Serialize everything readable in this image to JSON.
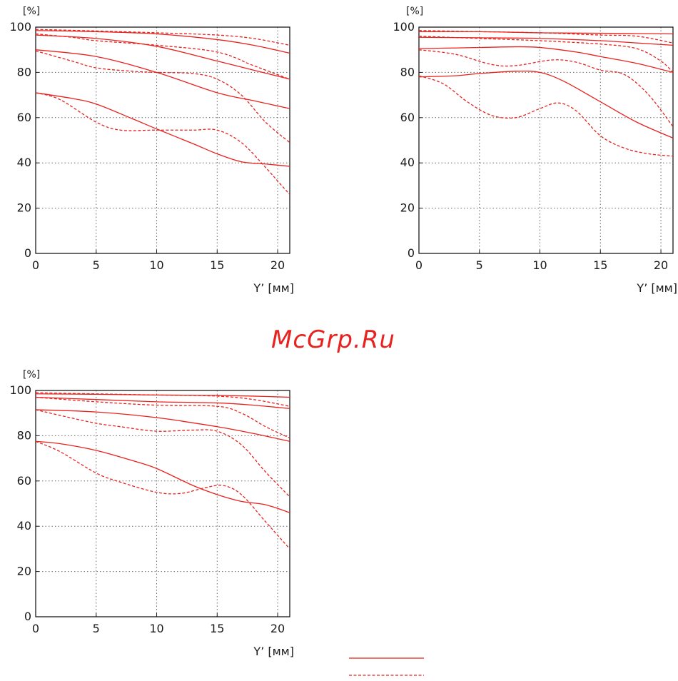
{
  "watermark": "McGrp.Ru",
  "colors": {
    "curve": "#e8221e",
    "grid": "#666666",
    "axis": "#1a1a1a"
  },
  "chart_data": [
    {
      "type": "line",
      "title": "",
      "ylabel": "[%]",
      "xlabel": "Y’ [мм]",
      "xlim": [
        0,
        21
      ],
      "ylim": [
        0,
        100
      ],
      "xticks": [
        0,
        5,
        10,
        15,
        20
      ],
      "yticks": [
        0,
        20,
        40,
        60,
        80,
        100
      ],
      "grid": true,
      "series": [
        {
          "style": "solid",
          "x": [
            0,
            5,
            10,
            15,
            18,
            21
          ],
          "y": [
            98.5,
            98,
            97,
            94.5,
            92,
            88.5
          ]
        },
        {
          "style": "dashed",
          "x": [
            0,
            5,
            10,
            15,
            18,
            21
          ],
          "y": [
            99,
            98.3,
            97.5,
            96.5,
            95,
            92
          ]
        },
        {
          "style": "solid",
          "x": [
            0,
            5,
            10,
            15,
            18,
            21
          ],
          "y": [
            96.5,
            95,
            91.5,
            85,
            81,
            77
          ]
        },
        {
          "style": "dashed",
          "x": [
            0,
            3,
            5,
            10,
            15,
            18,
            21
          ],
          "y": [
            97,
            95.5,
            94,
            92,
            89,
            83,
            77
          ]
        },
        {
          "style": "solid",
          "x": [
            0,
            5,
            10,
            15,
            18,
            21
          ],
          "y": [
            90,
            87,
            80,
            71,
            67.5,
            64
          ]
        },
        {
          "style": "dashed",
          "x": [
            0,
            3,
            5,
            8,
            10,
            13,
            15,
            17,
            19,
            21
          ],
          "y": [
            89.5,
            85,
            82,
            80.5,
            80,
            79.5,
            77,
            70,
            58,
            49
          ]
        },
        {
          "style": "solid",
          "x": [
            0,
            3,
            5,
            8,
            10,
            13,
            15,
            17,
            19,
            21
          ],
          "y": [
            71,
            68.5,
            66,
            59.5,
            55,
            48.5,
            44,
            40.5,
            39.5,
            38.5
          ]
        },
        {
          "style": "dashed",
          "x": [
            0,
            2,
            5,
            7,
            10,
            13,
            15,
            17,
            19,
            20,
            21
          ],
          "y": [
            71,
            68,
            58,
            54.5,
            54.5,
            54.5,
            54.5,
            49,
            38,
            32,
            26
          ]
        }
      ]
    },
    {
      "type": "line",
      "title": "",
      "ylabel": "[%]",
      "xlabel": "Y’ [мм]",
      "xlim": [
        0,
        21
      ],
      "ylim": [
        0,
        100
      ],
      "xticks": [
        0,
        5,
        10,
        15,
        20
      ],
      "yticks": [
        0,
        20,
        40,
        60,
        80,
        100
      ],
      "grid": true,
      "series": [
        {
          "style": "solid",
          "x": [
            0,
            5,
            10,
            15,
            21
          ],
          "y": [
            98,
            98,
            97.5,
            97.3,
            97
          ]
        },
        {
          "style": "dashed",
          "x": [
            0,
            5,
            10,
            15,
            18,
            21
          ],
          "y": [
            98.5,
            98,
            97.5,
            96.5,
            96,
            93
          ]
        },
        {
          "style": "solid",
          "x": [
            0,
            5,
            10,
            15,
            18,
            21
          ],
          "y": [
            95.5,
            95.3,
            95,
            94,
            93,
            92
          ]
        },
        {
          "style": "dashed",
          "x": [
            0,
            5,
            10,
            15,
            18,
            20,
            21
          ],
          "y": [
            96,
            95,
            94,
            92.5,
            90.5,
            85,
            80
          ]
        },
        {
          "style": "solid",
          "x": [
            0,
            5,
            8,
            10,
            13,
            15,
            18,
            21
          ],
          "y": [
            90.5,
            91,
            91.3,
            91,
            89,
            87,
            84,
            80
          ]
        },
        {
          "style": "dashed",
          "x": [
            0,
            3,
            6,
            8,
            11,
            13,
            15,
            17,
            19,
            21
          ],
          "y": [
            90,
            88,
            83.5,
            83,
            85.5,
            84.5,
            81,
            79,
            70,
            56
          ]
        },
        {
          "style": "solid",
          "x": [
            0,
            3,
            5,
            8,
            10,
            12,
            15,
            18,
            21
          ],
          "y": [
            78,
            78.5,
            79.5,
            80.5,
            80,
            76,
            67,
            58,
            51
          ]
        },
        {
          "style": "dashed",
          "x": [
            0,
            2,
            4,
            6,
            8,
            10,
            11.5,
            13,
            15,
            17,
            19,
            21
          ],
          "y": [
            78.5,
            75,
            67,
            61,
            60,
            64,
            66.5,
            63,
            52,
            46.5,
            44,
            43
          ]
        }
      ]
    },
    {
      "type": "line",
      "title": "",
      "ylabel": "[%]",
      "xlabel": "Y’ [мм]",
      "xlim": [
        0,
        21
      ],
      "ylim": [
        0,
        100
      ],
      "xticks": [
        0,
        5,
        10,
        15,
        20
      ],
      "yticks": [
        0,
        20,
        40,
        60,
        80,
        100
      ],
      "grid": true,
      "series": [
        {
          "style": "solid",
          "x": [
            0,
            5,
            10,
            15,
            18,
            21
          ],
          "y": [
            98.5,
            98.3,
            98,
            97.8,
            97.5,
            97
          ]
        },
        {
          "style": "dashed",
          "x": [
            0,
            5,
            10,
            15,
            18,
            21
          ],
          "y": [
            99,
            98.5,
            98,
            97.5,
            96,
            93
          ]
        },
        {
          "style": "solid",
          "x": [
            0,
            5,
            10,
            15,
            18,
            21
          ],
          "y": [
            97,
            96,
            95,
            94.5,
            93.5,
            92
          ]
        },
        {
          "style": "dashed",
          "x": [
            0,
            5,
            10,
            15,
            17,
            19,
            21
          ],
          "y": [
            97,
            95,
            93.5,
            93,
            90,
            84,
            79
          ]
        },
        {
          "style": "solid",
          "x": [
            0,
            5,
            10,
            15,
            18,
            21
          ],
          "y": [
            91.5,
            90.5,
            88,
            84,
            81,
            77.5
          ]
        },
        {
          "style": "dashed",
          "x": [
            0,
            2,
            5,
            7,
            10,
            13,
            15,
            17,
            19,
            21
          ],
          "y": [
            91.5,
            89,
            85.5,
            84,
            82,
            82.5,
            82,
            76,
            64,
            53
          ]
        },
        {
          "style": "solid",
          "x": [
            0,
            2,
            5,
            8,
            10,
            13,
            15,
            17,
            19,
            21
          ],
          "y": [
            77.5,
            76.5,
            73.5,
            69,
            65.5,
            58,
            54,
            51,
            49.5,
            46
          ]
        },
        {
          "style": "dashed",
          "x": [
            0,
            2,
            5,
            7,
            10,
            12,
            14,
            15.5,
            17,
            19,
            21
          ],
          "y": [
            77.5,
            73,
            63.5,
            59.5,
            55,
            54.5,
            57,
            58,
            54,
            42,
            30
          ]
        }
      ]
    }
  ],
  "legend": [
    {
      "style": "solid",
      "name": ""
    },
    {
      "style": "dashed",
      "name": ""
    }
  ]
}
